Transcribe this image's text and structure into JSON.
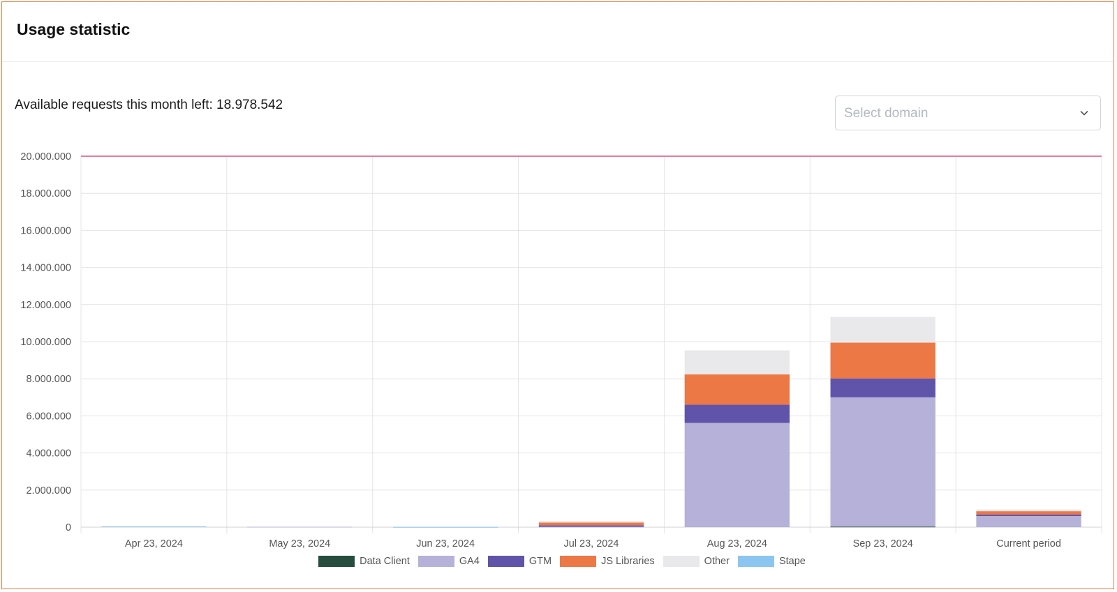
{
  "header": {
    "title": "Usage statistic"
  },
  "summary": {
    "available_text": "Available requests this month left: 18.978.542"
  },
  "domain_select": {
    "placeholder": "Select domain",
    "icon": "chevron-down-icon"
  },
  "colors": {
    "Data Client": "#264d3e",
    "GA4": "#b5b1d8",
    "GTM": "#6054aa",
    "JS Libraries": "#ec7846",
    "Other": "#e9e9eb",
    "Stape": "#8cc5ef",
    "limit_line": "#e0527a",
    "card_border": "#e8783e"
  },
  "chart_data": {
    "type": "bar",
    "stacked": true,
    "categories": [
      "Apr 23, 2024",
      "May 23, 2024",
      "Jun 23, 2024",
      "Jul 23, 2024",
      "Aug 23, 2024",
      "Sep 23, 2024",
      "Current period"
    ],
    "series": [
      {
        "name": "Data Client",
        "values": [
          0,
          0,
          0,
          0,
          0,
          30000,
          0
        ]
      },
      {
        "name": "GA4",
        "values": [
          0,
          20000,
          0,
          20000,
          5620000,
          6970000,
          600000
        ]
      },
      {
        "name": "GTM",
        "values": [
          0,
          0,
          0,
          80000,
          980000,
          1020000,
          80000
        ]
      },
      {
        "name": "JS Libraries",
        "values": [
          0,
          0,
          0,
          150000,
          1640000,
          1930000,
          180000
        ]
      },
      {
        "name": "Other",
        "values": [
          0,
          0,
          0,
          90000,
          1290000,
          1380000,
          100000
        ]
      },
      {
        "name": "Stape",
        "values": [
          40000,
          0,
          10000,
          0,
          0,
          0,
          0
        ]
      }
    ],
    "ylim": [
      0,
      20000000
    ],
    "yticks": [
      0,
      2000000,
      4000000,
      6000000,
      8000000,
      10000000,
      12000000,
      14000000,
      16000000,
      18000000,
      20000000
    ],
    "ytick_labels": [
      "0",
      "2.000.000",
      "4.000.000",
      "6.000.000",
      "8.000.000",
      "10.000.000",
      "12.000.000",
      "14.000.000",
      "16.000.000",
      "18.000.000",
      "20.000.000"
    ],
    "limit_value": 20000000,
    "grid": true,
    "legend_position": "bottom",
    "xlabel": "",
    "ylabel": ""
  }
}
